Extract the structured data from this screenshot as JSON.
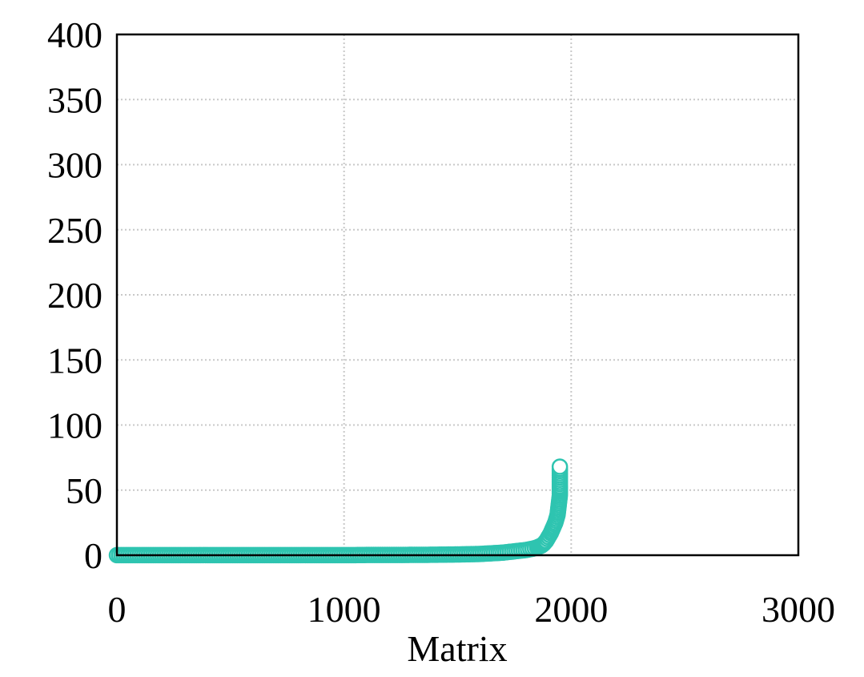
{
  "chart_data": {
    "type": "scatter",
    "title": "",
    "xlabel": "Matrix",
    "ylabel": "",
    "xlim": [
      0,
      3000
    ],
    "ylim": [
      0,
      400
    ],
    "x_ticks": [
      0,
      1000,
      2000,
      3000
    ],
    "y_ticks": [
      0,
      50,
      100,
      150,
      200,
      250,
      300,
      350,
      400
    ],
    "grid": true,
    "marker": "open-circle",
    "color": "#2ec4b0",
    "series": [
      {
        "points": [
          [
            0,
            0.1
          ],
          [
            50,
            0.1
          ],
          [
            100,
            0.1
          ],
          [
            150,
            0.1
          ],
          [
            200,
            0.1
          ],
          [
            250,
            0.1
          ],
          [
            300,
            0.1
          ],
          [
            350,
            0.1
          ],
          [
            400,
            0.1
          ],
          [
            450,
            0.1
          ],
          [
            500,
            0.1
          ],
          [
            550,
            0.1
          ],
          [
            600,
            0.1
          ],
          [
            650,
            0.1
          ],
          [
            700,
            0.1
          ],
          [
            750,
            0.1
          ],
          [
            800,
            0.1
          ],
          [
            850,
            0.1
          ],
          [
            900,
            0.1
          ],
          [
            950,
            0.1
          ],
          [
            1000,
            0.1
          ],
          [
            1050,
            0.1
          ],
          [
            1100,
            0.2
          ],
          [
            1150,
            0.2
          ],
          [
            1200,
            0.2
          ],
          [
            1250,
            0.2
          ],
          [
            1300,
            0.3
          ],
          [
            1350,
            0.3
          ],
          [
            1400,
            0.4
          ],
          [
            1450,
            0.5
          ],
          [
            1500,
            0.6
          ],
          [
            1550,
            0.8
          ],
          [
            1600,
            1.0
          ],
          [
            1650,
            1.5
          ],
          [
            1700,
            2.0
          ],
          [
            1750,
            3.0
          ],
          [
            1800,
            4.0
          ],
          [
            1830,
            5.0
          ],
          [
            1850,
            6.0
          ],
          [
            1870,
            7.5
          ],
          [
            1880,
            9
          ],
          [
            1890,
            11
          ],
          [
            1900,
            14
          ],
          [
            1910,
            17
          ],
          [
            1920,
            21
          ],
          [
            1930,
            25
          ],
          [
            1935,
            28
          ],
          [
            1940,
            31
          ],
          [
            1942,
            34
          ],
          [
            1944,
            37
          ],
          [
            1946,
            40
          ],
          [
            1948,
            43
          ],
          [
            1950,
            46
          ],
          [
            1950,
            49
          ],
          [
            1950,
            53
          ],
          [
            1950,
            68
          ]
        ]
      }
    ]
  }
}
